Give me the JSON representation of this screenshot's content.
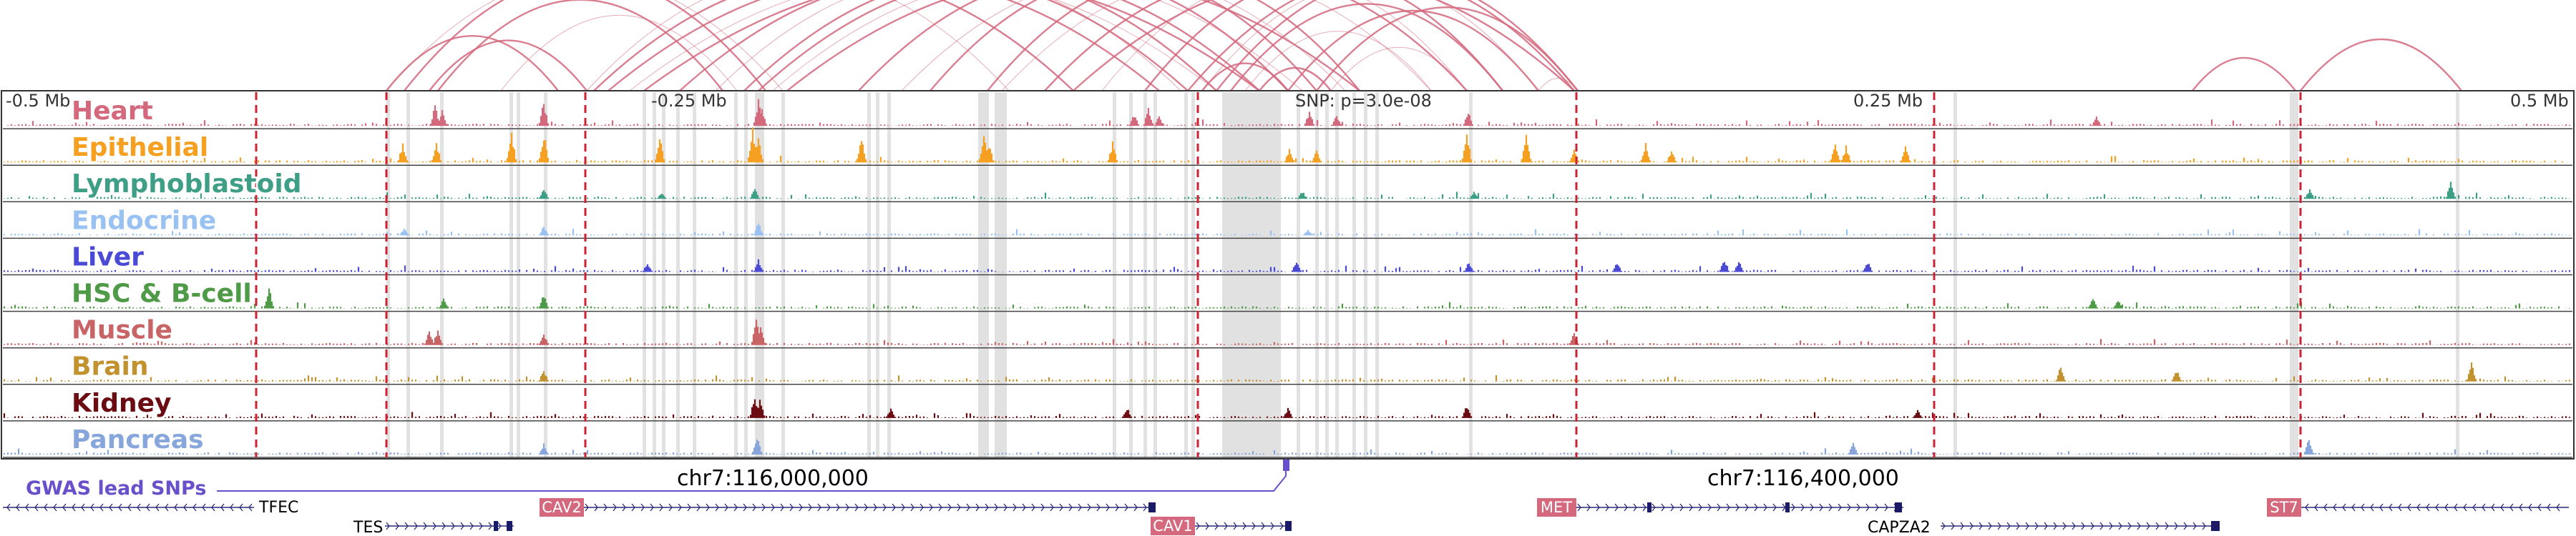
{
  "axis": {
    "left_label": "-0.5 Mb",
    "mid_left_label": "-0.25 Mb",
    "snp_label": "SNP: p=3.0e-08",
    "mid_right_label": "0.25 Mb",
    "right_label": "0.5 Mb"
  },
  "tracks": [
    {
      "name": "Heart",
      "color": "#d4697e"
    },
    {
      "name": "Epithelial",
      "color": "#f5a020"
    },
    {
      "name": "Lymphoblastoid",
      "color": "#3f9f86"
    },
    {
      "name": "Endocrine",
      "color": "#99c2f2"
    },
    {
      "name": "Liver",
      "color": "#4a4ad6"
    },
    {
      "name": "HSC & B-cell",
      "color": "#4f9a46"
    },
    {
      "name": "Muscle",
      "color": "#c86466"
    },
    {
      "name": "Brain",
      "color": "#c2922e"
    },
    {
      "name": "Kidney",
      "color": "#6b0c12"
    },
    {
      "name": "Pancreas",
      "color": "#86a6dc"
    }
  ],
  "gwas": {
    "label": "GWAS lead SNPs",
    "color": "#6a4fcb"
  },
  "coordinates": {
    "left": "chr7:116,000,000",
    "right": "chr7:116,400,000"
  },
  "genes": [
    {
      "name": "TFEC",
      "boxed": false
    },
    {
      "name": "TES",
      "boxed": false
    },
    {
      "name": "CAV2",
      "boxed": true
    },
    {
      "name": "CAV1",
      "boxed": true
    },
    {
      "name": "MET",
      "boxed": true
    },
    {
      "name": "CAPZA2",
      "boxed": false
    },
    {
      "name": "ST7",
      "boxed": true
    }
  ],
  "colors": {
    "loop": "#d4697e",
    "highlight": "#d9d9d9",
    "boundary": "#cc2233",
    "gene_line": "#2a2a7a"
  }
}
